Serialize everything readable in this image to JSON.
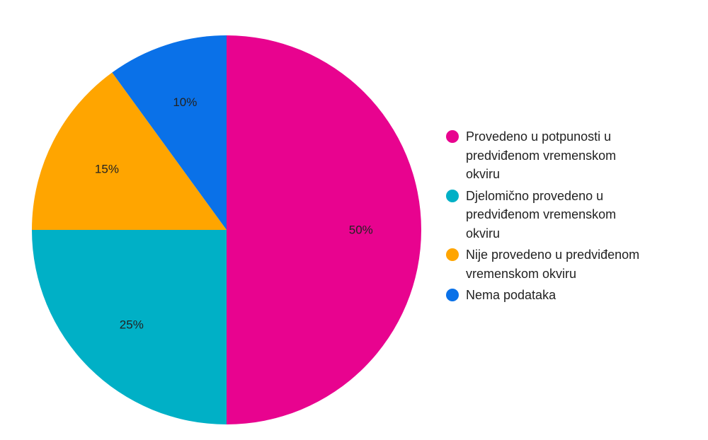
{
  "chart_data": {
    "type": "pie",
    "title": "",
    "series": [
      {
        "values": [
          50,
          25,
          15,
          10
        ]
      }
    ],
    "slices": [
      {
        "label": "Provedeno u potpunosti u predviđenom vremenskom okviru",
        "value": 50,
        "display": "50%",
        "color": "#E8038F"
      },
      {
        "label": "Djelomično provedeno u predviđenom vremenskom okviru",
        "value": 25,
        "display": "25%",
        "color": "#00B0C6"
      },
      {
        "label": "Nije provedeno u predviđenom vremenskom okviru",
        "value": 15,
        "display": "15%",
        "color": "#FFA500"
      },
      {
        "label": "Nema podataka",
        "value": 10,
        "display": "10%",
        "color": "#0A71E8"
      }
    ],
    "legend_position": "right",
    "start_angle": "top",
    "direction": "clockwise"
  }
}
